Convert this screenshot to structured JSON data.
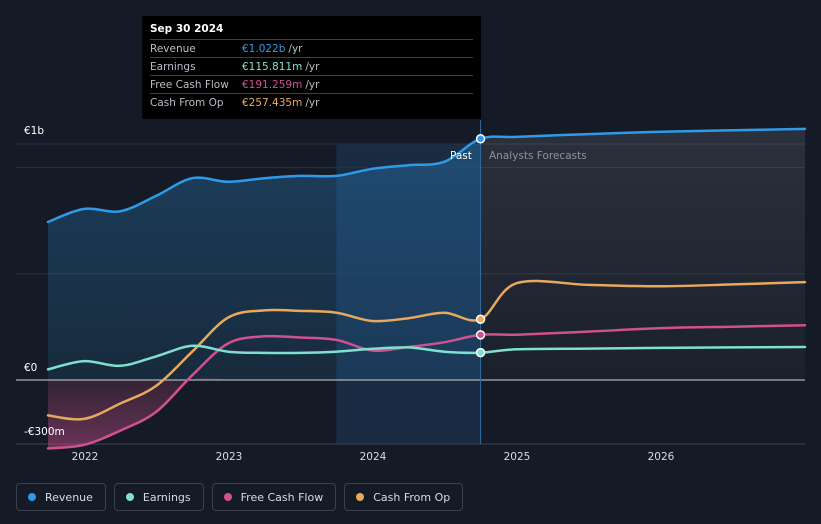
{
  "tooltip": {
    "date": "Sep 30 2024",
    "rows": [
      {
        "label": "Revenue",
        "value": "€1.022b",
        "unit": "/yr",
        "color": "#2f9be8"
      },
      {
        "label": "Earnings",
        "value": "€115.811m",
        "unit": "/yr",
        "color": "#7ee0cf"
      },
      {
        "label": "Free Cash Flow",
        "value": "€191.259m",
        "unit": "/yr",
        "color": "#d1508f"
      },
      {
        "label": "Cash From Op",
        "value": "€257.435m",
        "unit": "/yr",
        "color": "#e8a95c"
      }
    ]
  },
  "markers": {
    "past": "Past",
    "forecast": "Analysts Forecasts"
  },
  "legend": [
    {
      "label": "Revenue",
      "color": "#2f9be8"
    },
    {
      "label": "Earnings",
      "color": "#7ee0cf"
    },
    {
      "label": "Free Cash Flow",
      "color": "#d1508f"
    },
    {
      "label": "Cash From Op",
      "color": "#e8a95c"
    }
  ],
  "chart_data": {
    "type": "line",
    "title": "",
    "y_unit": "€m",
    "ylim": [
      -300,
      1000
    ],
    "y_tick_labels": [
      {
        "value": 1000,
        "label": "€1b"
      },
      {
        "value": 0,
        "label": "€0"
      },
      {
        "value": -300,
        "label": "-€300m"
      }
    ],
    "xlim": [
      2021.75,
      2027.0
    ],
    "x_ticks": [
      {
        "value": 2022.0,
        "label": "2022"
      },
      {
        "value": 2023.0,
        "label": "2023"
      },
      {
        "value": 2024.0,
        "label": "2024"
      },
      {
        "value": 2025.0,
        "label": "2025"
      },
      {
        "value": 2026.0,
        "label": "2026"
      }
    ],
    "highlight_start": 2023.75,
    "past_end": 2024.75,
    "series": [
      {
        "name": "Revenue",
        "color": "#2f9be8",
        "points": [
          [
            2021.75,
            670
          ],
          [
            2022.0,
            725
          ],
          [
            2022.25,
            715
          ],
          [
            2022.5,
            780
          ],
          [
            2022.75,
            855
          ],
          [
            2023.0,
            840
          ],
          [
            2023.25,
            855
          ],
          [
            2023.5,
            865
          ],
          [
            2023.75,
            865
          ],
          [
            2024.0,
            895
          ],
          [
            2024.25,
            910
          ],
          [
            2024.5,
            925
          ],
          [
            2024.75,
            1022
          ],
          [
            2025.0,
            1030
          ],
          [
            2025.5,
            1042
          ],
          [
            2026.0,
            1052
          ],
          [
            2026.5,
            1058
          ],
          [
            2027.0,
            1064
          ]
        ]
      },
      {
        "name": "Earnings",
        "color": "#7ee0cf",
        "points": [
          [
            2021.75,
            45
          ],
          [
            2022.0,
            80
          ],
          [
            2022.25,
            60
          ],
          [
            2022.5,
            100
          ],
          [
            2022.75,
            145
          ],
          [
            2023.0,
            120
          ],
          [
            2023.25,
            115
          ],
          [
            2023.5,
            115
          ],
          [
            2023.75,
            120
          ],
          [
            2024.0,
            132
          ],
          [
            2024.25,
            138
          ],
          [
            2024.5,
            120
          ],
          [
            2024.75,
            115.8
          ],
          [
            2025.0,
            130
          ],
          [
            2025.5,
            133
          ],
          [
            2026.0,
            136
          ],
          [
            2026.5,
            138
          ],
          [
            2027.0,
            140
          ]
        ]
      },
      {
        "name": "Free Cash Flow",
        "color": "#d1508f",
        "points": [
          [
            2021.75,
            -290
          ],
          [
            2022.0,
            -275
          ],
          [
            2022.25,
            -215
          ],
          [
            2022.5,
            -135
          ],
          [
            2022.75,
            20
          ],
          [
            2023.0,
            155
          ],
          [
            2023.25,
            185
          ],
          [
            2023.5,
            180
          ],
          [
            2023.75,
            170
          ],
          [
            2024.0,
            125
          ],
          [
            2024.25,
            140
          ],
          [
            2024.5,
            160
          ],
          [
            2024.75,
            191.3
          ],
          [
            2025.0,
            192
          ],
          [
            2025.5,
            205
          ],
          [
            2026.0,
            220
          ],
          [
            2026.5,
            226
          ],
          [
            2027.0,
            232
          ]
        ]
      },
      {
        "name": "Cash From Op",
        "color": "#e8a95c",
        "points": [
          [
            2021.75,
            -150
          ],
          [
            2022.0,
            -165
          ],
          [
            2022.25,
            -100
          ],
          [
            2022.5,
            -25
          ],
          [
            2022.75,
            120
          ],
          [
            2023.0,
            265
          ],
          [
            2023.25,
            295
          ],
          [
            2023.5,
            293
          ],
          [
            2023.75,
            285
          ],
          [
            2024.0,
            250
          ],
          [
            2024.25,
            262
          ],
          [
            2024.5,
            285
          ],
          [
            2024.75,
            257.4
          ],
          [
            2025.0,
            410
          ],
          [
            2025.5,
            403
          ],
          [
            2026.0,
            397
          ],
          [
            2026.5,
            405
          ],
          [
            2027.0,
            415
          ]
        ]
      }
    ]
  }
}
